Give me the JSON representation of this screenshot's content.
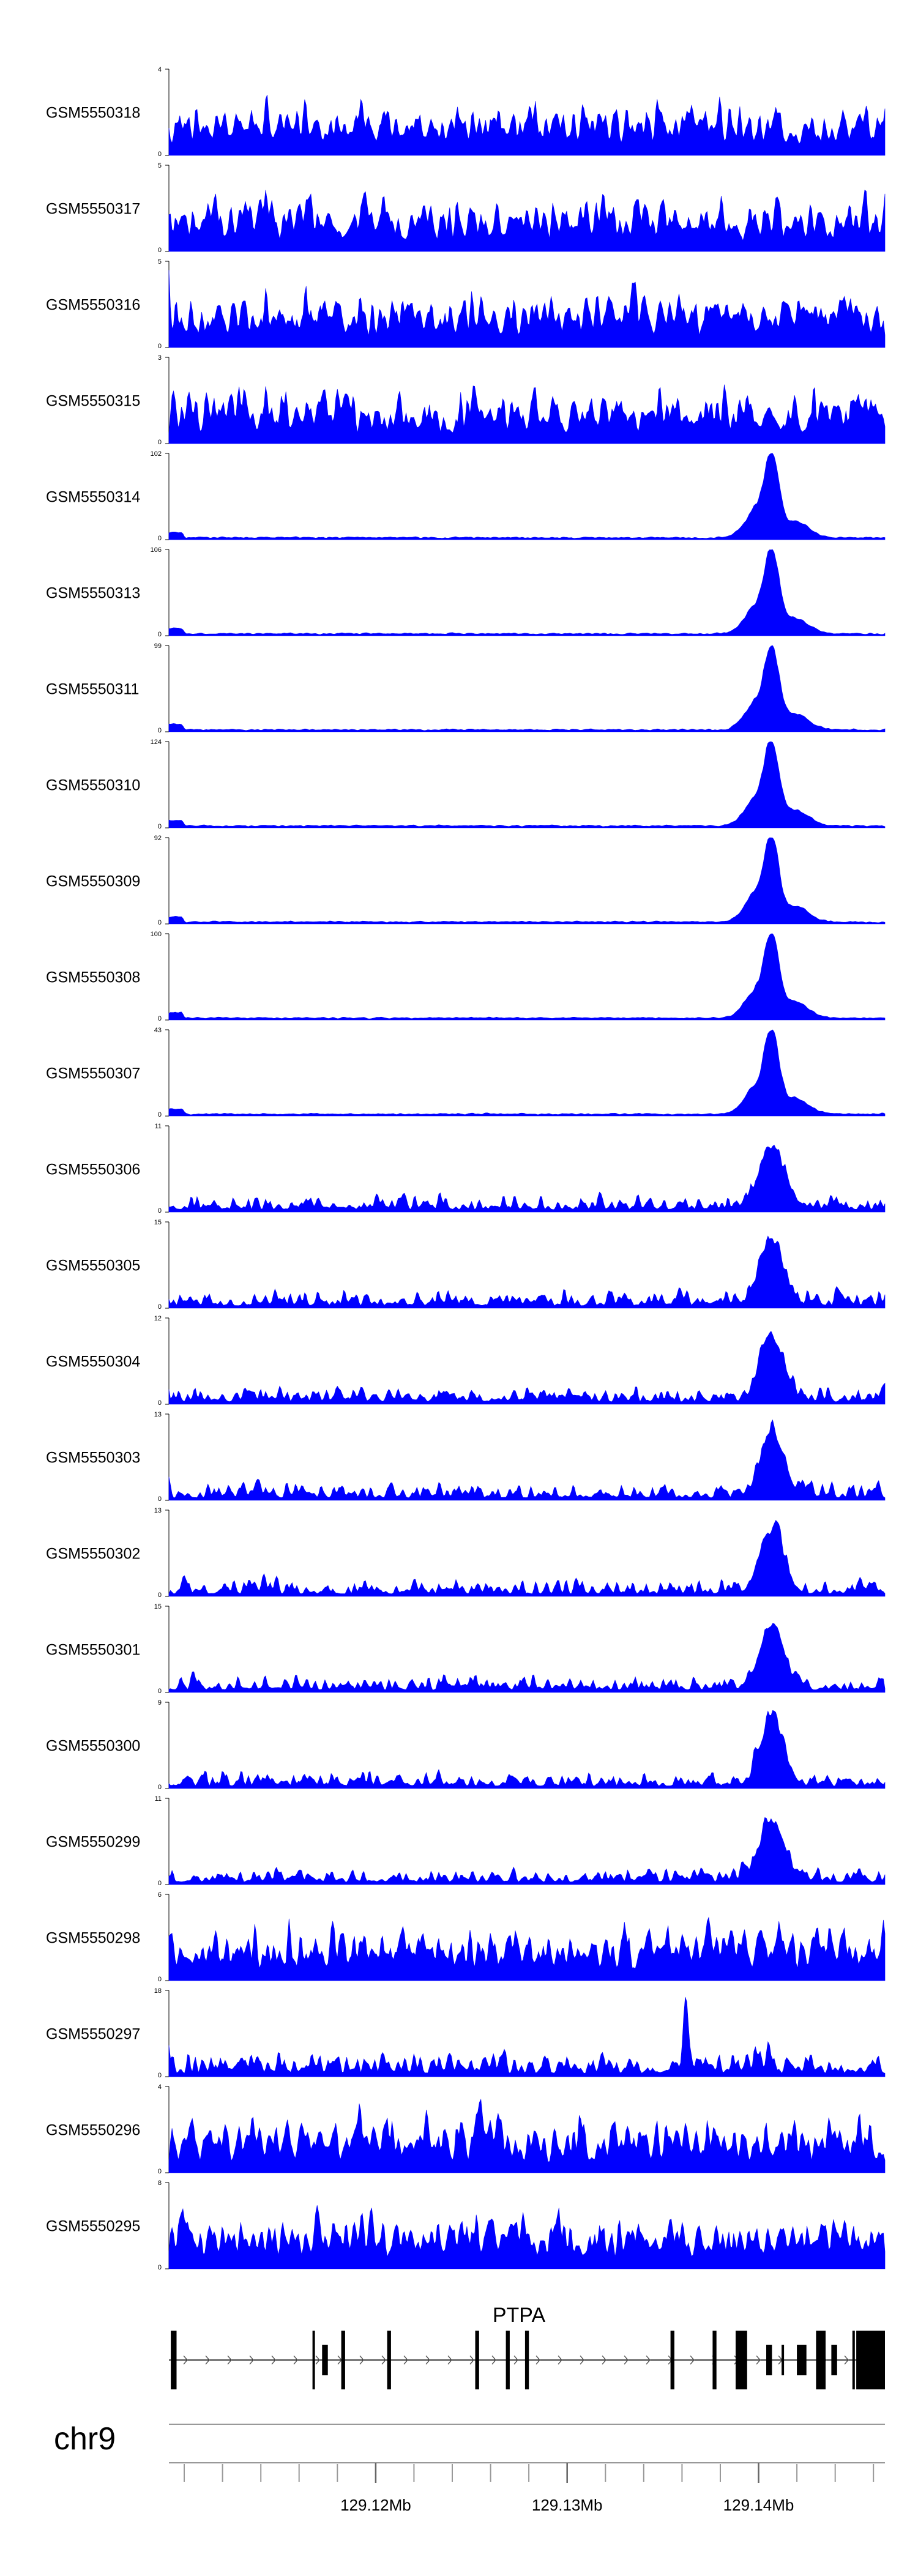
{
  "chart_data": {
    "type": "area",
    "chromosome": "chr9",
    "color": "#0000ff",
    "x_range": [
      129.1092,
      129.1466
    ],
    "tracks": [
      {
        "name": "GSM5550318",
        "max": "4",
        "min": "0",
        "ylim": [
          0,
          4
        ],
        "pattern": "flat",
        "seed": 318
      },
      {
        "name": "GSM5550317",
        "max": "5",
        "min": "0",
        "ylim": [
          0,
          5
        ],
        "pattern": "flat",
        "seed": 317
      },
      {
        "name": "GSM5550316",
        "max": "5",
        "min": "0",
        "ylim": [
          0,
          5
        ],
        "pattern": "flat",
        "seed": 316
      },
      {
        "name": "GSM5550315",
        "max": "3",
        "min": "0",
        "ylim": [
          0,
          3
        ],
        "pattern": "flat",
        "seed": 315
      },
      {
        "name": "GSM5550314",
        "max": "102",
        "min": "0",
        "ylim": [
          0,
          102
        ],
        "pattern": "peak",
        "seed": 314
      },
      {
        "name": "GSM5550313",
        "max": "106",
        "min": "0",
        "ylim": [
          0,
          106
        ],
        "pattern": "peak",
        "seed": 313
      },
      {
        "name": "GSM5550311",
        "max": "99",
        "min": "0",
        "ylim": [
          0,
          99
        ],
        "pattern": "peak",
        "seed": 311
      },
      {
        "name": "GSM5550310",
        "max": "124",
        "min": "0",
        "ylim": [
          0,
          124
        ],
        "pattern": "peak",
        "seed": 310
      },
      {
        "name": "GSM5550309",
        "max": "92",
        "min": "0",
        "ylim": [
          0,
          92
        ],
        "pattern": "peak",
        "seed": 309
      },
      {
        "name": "GSM5550308",
        "max": "100",
        "min": "0",
        "ylim": [
          0,
          100
        ],
        "pattern": "peak",
        "seed": 308
      },
      {
        "name": "GSM5550307",
        "max": "43",
        "min": "0",
        "ylim": [
          0,
          43
        ],
        "pattern": "peak",
        "seed": 307
      },
      {
        "name": "GSM5550306",
        "max": "11",
        "min": "0",
        "ylim": [
          0,
          11
        ],
        "pattern": "mixed",
        "seed": 306
      },
      {
        "name": "GSM5550305",
        "max": "15",
        "min": "0",
        "ylim": [
          0,
          15
        ],
        "pattern": "mixed",
        "seed": 305
      },
      {
        "name": "GSM5550304",
        "max": "12",
        "min": "0",
        "ylim": [
          0,
          12
        ],
        "pattern": "mixed",
        "seed": 304
      },
      {
        "name": "GSM5550303",
        "max": "13",
        "min": "0",
        "ylim": [
          0,
          13
        ],
        "pattern": "mixed",
        "seed": 303
      },
      {
        "name": "GSM5550302",
        "max": "13",
        "min": "0",
        "ylim": [
          0,
          13
        ],
        "pattern": "mixed",
        "seed": 302
      },
      {
        "name": "GSM5550301",
        "max": "15",
        "min": "0",
        "ylim": [
          0,
          15
        ],
        "pattern": "mixed",
        "seed": 301
      },
      {
        "name": "GSM5550300",
        "max": "9",
        "min": "0",
        "ylim": [
          0,
          9
        ],
        "pattern": "mixed",
        "seed": 300
      },
      {
        "name": "GSM5550299",
        "max": "11",
        "min": "0",
        "ylim": [
          0,
          11
        ],
        "pattern": "mixed",
        "seed": 299
      },
      {
        "name": "GSM5550298",
        "max": "6",
        "min": "0",
        "ylim": [
          0,
          6
        ],
        "pattern": "flat",
        "seed": 298
      },
      {
        "name": "GSM5550297",
        "max": "18",
        "min": "0",
        "ylim": [
          0,
          18
        ],
        "pattern": "spike",
        "seed": 297
      },
      {
        "name": "GSM5550296",
        "max": "4",
        "min": "0",
        "ylim": [
          0,
          4
        ],
        "pattern": "flat",
        "seed": 296
      },
      {
        "name": "GSM5550295",
        "max": "8",
        "min": "0",
        "ylim": [
          0,
          8
        ],
        "pattern": "flat",
        "seed": 295
      }
    ],
    "gene": {
      "name": "PTPA",
      "exons": [
        {
          "start": 129.1093,
          "end": 129.1096,
          "tall": true
        },
        {
          "start": 129.1167,
          "end": 129.1168,
          "tall": true
        },
        {
          "start": 129.1172,
          "end": 129.1175,
          "tall": false
        },
        {
          "start": 129.1182,
          "end": 129.1184,
          "tall": true
        },
        {
          "start": 129.1206,
          "end": 129.1208,
          "tall": true
        },
        {
          "start": 129.1252,
          "end": 129.1254,
          "tall": true
        },
        {
          "start": 129.1268,
          "end": 129.127,
          "tall": true
        },
        {
          "start": 129.1278,
          "end": 129.128,
          "tall": true
        },
        {
          "start": 129.1354,
          "end": 129.1356,
          "tall": true
        },
        {
          "start": 129.1376,
          "end": 129.1378,
          "tall": true
        },
        {
          "start": 129.1388,
          "end": 129.1394,
          "tall": true
        },
        {
          "start": 129.1404,
          "end": 129.1407,
          "tall": false
        },
        {
          "start": 129.1412,
          "end": 129.1413,
          "tall": false
        },
        {
          "start": 129.142,
          "end": 129.1425,
          "tall": false
        },
        {
          "start": 129.143,
          "end": 129.1435,
          "tall": true
        },
        {
          "start": 129.1438,
          "end": 129.1441,
          "tall": false
        },
        {
          "start": 129.1449,
          "end": 129.145,
          "tall": true
        },
        {
          "start": 129.1451,
          "end": 129.1466,
          "tall": true
        }
      ]
    },
    "axis": {
      "ticks": [
        {
          "pos": 129.12,
          "label": "129.12Mb"
        },
        {
          "pos": 129.13,
          "label": "129.13Mb"
        },
        {
          "pos": 129.14,
          "label": "129.14Mb"
        }
      ],
      "minor_step": 0.002
    }
  }
}
